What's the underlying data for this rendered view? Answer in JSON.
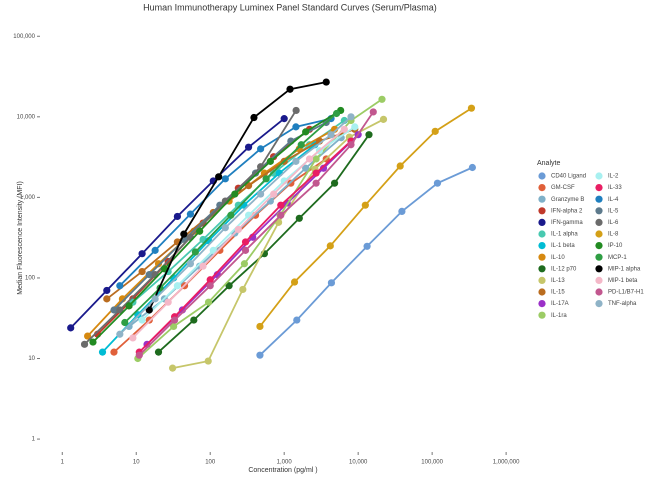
{
  "chart_data": {
    "type": "line",
    "title": "Human Immunotherapy Luminex Panel Standard Curves (Serum/Plasma)",
    "x_label": "Concentration (pg/ml )",
    "y_label": "Median Fluorescence Intensity (MFI)",
    "xscale": "log",
    "yscale": "log",
    "xlim": [
      0.5,
      1800000
    ],
    "ylim": [
      0.55,
      200000
    ],
    "xticks": [
      1,
      10,
      100,
      {
        "value": 1000,
        "label": "1,000"
      },
      {
        "value": 10000,
        "label": "10,000"
      },
      {
        "value": 100000,
        "label": "100,000"
      },
      {
        "value": 1000000,
        "label": "1,000,000"
      }
    ],
    "yticks": [
      1,
      10,
      100,
      {
        "value": 1000,
        "label": "1,000"
      },
      {
        "value": 10000,
        "label": "10,000"
      },
      {
        "value": 100000,
        "label": "100,000"
      }
    ],
    "legend_title": "Analyte",
    "legend_position": "right",
    "series": [
      {
        "name": "CD40 Ligand",
        "color": "#6b9bd6",
        "x": [
          470,
          1480,
          4350,
          13200,
          39000,
          118000,
          350000
        ],
        "values": [
          11,
          30,
          87,
          247,
          670,
          1500,
          2350
        ]
      },
      {
        "name": "GM-CSF",
        "color": "#e0603a",
        "x": [
          5,
          15,
          45,
          135,
          410,
          1230,
          3700
        ],
        "values": [
          12,
          30,
          80,
          220,
          600,
          1500,
          3000
        ]
      },
      {
        "name": "Granzyme B",
        "color": "#7fb0c8",
        "x": [
          8,
          24,
          72,
          215,
          650,
          1950,
          5900
        ],
        "values": [
          25,
          55,
          140,
          360,
          900,
          2300,
          5500
        ]
      },
      {
        "name": "IFN-alpha 2",
        "color": "#c0392b",
        "x": [
          3,
          9,
          27,
          80,
          240,
          720,
          2200
        ],
        "values": [
          20,
          55,
          160,
          480,
          1300,
          3200,
          7000
        ]
      },
      {
        "name": "IFN-gamma",
        "color": "#1a1a8c",
        "x": [
          1.3,
          4,
          12,
          36,
          110,
          330,
          1000
        ],
        "values": [
          24,
          70,
          200,
          580,
          1600,
          4200,
          9500
        ]
      },
      {
        "name": "IL-1 alpha",
        "color": "#48c9b0",
        "x": [
          9,
          27,
          80,
          240,
          720,
          2200,
          6500
        ],
        "values": [
          50,
          120,
          300,
          800,
          2000,
          4500,
          9000
        ]
      },
      {
        "name": "IL-1 beta",
        "color": "#00bcd4",
        "x": [
          3.5,
          10.5,
          32,
          95,
          285,
          860,
          2600
        ],
        "values": [
          12,
          35,
          100,
          290,
          800,
          2000,
          4500
        ]
      },
      {
        "name": "IL-10",
        "color": "#d68910",
        "x": [
          2.2,
          6.5,
          20,
          60,
          180,
          540,
          1600,
          4800
        ],
        "values": [
          19,
          55,
          150,
          380,
          900,
          2000,
          4000,
          7000
        ]
      },
      {
        "name": "IL-12 p70",
        "color": "#1e6b1e",
        "x": [
          20,
          60,
          180,
          540,
          1600,
          4800,
          14000
        ],
        "values": [
          12,
          30,
          80,
          200,
          550,
          1500,
          6000
        ]
      },
      {
        "name": "IL-13",
        "color": "#c6c66a",
        "x": [
          31,
          94,
          276,
          840,
          2600,
          7600,
          22000
        ],
        "values": [
          7.6,
          9.3,
          72,
          490,
          2240,
          5600,
          9300
        ]
      },
      {
        "name": "IL-15",
        "color": "#ba6c1f",
        "x": [
          4,
          12,
          36,
          110,
          330,
          1000,
          3000,
          9000
        ],
        "values": [
          55,
          120,
          280,
          650,
          1400,
          2800,
          5000,
          7000
        ]
      },
      {
        "name": "IL-17A",
        "color": "#9b30c8",
        "x": [
          14,
          42,
          125,
          375,
          1100,
          3400,
          10000
        ],
        "values": [
          15,
          40,
          110,
          320,
          850,
          2300,
          6000
        ]
      },
      {
        "name": "IL-1ra",
        "color": "#9ccc65",
        "x": [
          10.5,
          32,
          95,
          290,
          880,
          2700,
          8000,
          21000
        ],
        "values": [
          10,
          25,
          50,
          150,
          600,
          3000,
          9000,
          16500
        ]
      },
      {
        "name": "IL-2",
        "color": "#a8f0f0",
        "x": [
          12,
          36,
          110,
          330,
          1000,
          3000,
          9000
        ],
        "values": [
          30,
          80,
          220,
          600,
          1600,
          3800,
          7500
        ]
      },
      {
        "name": "IL-33",
        "color": "#e91e63",
        "x": [
          11,
          33,
          100,
          300,
          900,
          2700,
          8000
        ],
        "values": [
          12,
          33,
          95,
          280,
          800,
          2000,
          5000
        ]
      },
      {
        "name": "IL-4",
        "color": "#1f7fbf",
        "x": [
          6,
          18,
          54,
          160,
          480,
          1440,
          4300
        ],
        "values": [
          80,
          220,
          620,
          1700,
          4000,
          7500,
          9500
        ]
      },
      {
        "name": "IL-5",
        "color": "#5d7a8c",
        "x": [
          5,
          15,
          45,
          135,
          410,
          1230,
          3700
        ],
        "values": [
          40,
          110,
          300,
          800,
          2000,
          5000,
          8500
        ]
      },
      {
        "name": "IL-6",
        "color": "#6b6b6b",
        "x": [
          2,
          6,
          18,
          54,
          160,
          480,
          1450
        ],
        "values": [
          15,
          40,
          110,
          320,
          900,
          2400,
          12000
        ]
      },
      {
        "name": "IL-8",
        "color": "#d4a017",
        "x": [
          470,
          1380,
          4200,
          12500,
          37000,
          110000,
          340000
        ],
        "values": [
          25,
          89,
          250,
          800,
          2450,
          6600,
          12800
        ]
      },
      {
        "name": "IP-10",
        "color": "#228b22",
        "x": [
          2.6,
          8,
          24,
          72,
          215,
          650,
          1950,
          5800
        ],
        "values": [
          16,
          45,
          130,
          380,
          1100,
          2800,
          6500,
          12000
        ]
      },
      {
        "name": "MCP-1",
        "color": "#2f9e44",
        "x": [
          7,
          21,
          63,
          190,
          570,
          1700,
          5100
        ],
        "values": [
          28,
          75,
          210,
          600,
          1700,
          4500,
          11000
        ]
      },
      {
        "name": "MIP-1 alpha",
        "color": "#000000",
        "x": [
          15,
          44,
          130,
          390,
          1200,
          3700
        ],
        "values": [
          40,
          350,
          1800,
          9800,
          22000,
          27000
        ]
      },
      {
        "name": "MIP-1 beta",
        "color": "#f4b8c8",
        "x": [
          9,
          27,
          80,
          240,
          720,
          2200,
          6500
        ],
        "values": [
          18,
          50,
          140,
          400,
          1100,
          3000,
          7000
        ]
      },
      {
        "name": "PD-L1/B7-H1",
        "color": "#c2578f",
        "x": [
          11,
          33,
          100,
          300,
          900,
          2700,
          8000,
          16000
        ],
        "values": [
          11,
          30,
          80,
          220,
          600,
          1500,
          4500,
          11500
        ]
      },
      {
        "name": "TNF-alpha",
        "color": "#8fb3c7",
        "x": [
          6,
          18,
          54,
          160,
          480,
          1440,
          4300,
          8000
        ],
        "values": [
          20,
          55,
          150,
          420,
          1100,
          2800,
          6000,
          10000
        ]
      }
    ]
  }
}
